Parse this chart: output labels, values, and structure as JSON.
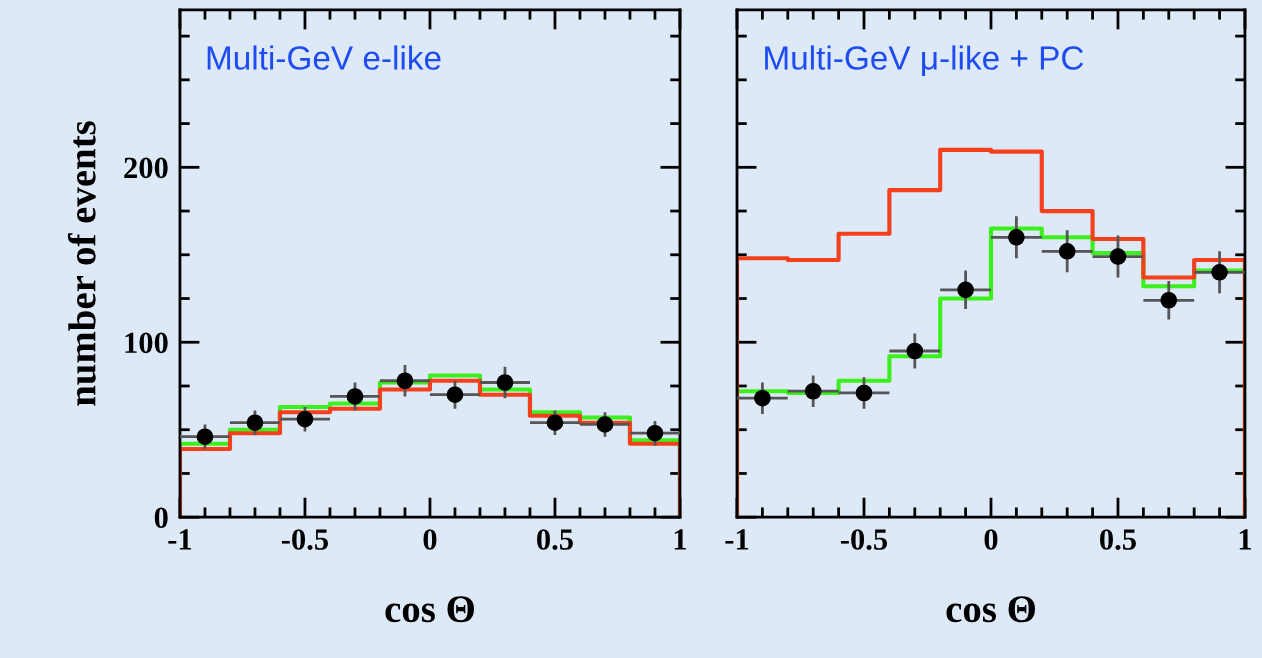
{
  "chart_data": [
    {
      "type": "histogram",
      "title": "Multi-GeV e-like",
      "xlabel": "cos Θ",
      "ylabel": "number of events",
      "bins": [
        -1,
        -0.8,
        -0.6,
        -0.4,
        -0.2,
        0,
        0.2,
        0.4,
        0.6,
        0.8,
        1
      ],
      "series": [
        {
          "color": "#3cf01e",
          "values": [
            42,
            50,
            63,
            65,
            77,
            81,
            73,
            60,
            57,
            44
          ]
        },
        {
          "color": "#f5401e",
          "values": [
            39,
            48,
            60,
            62,
            73,
            78,
            70,
            58,
            54,
            42
          ]
        },
        {
          "type": "scatter",
          "color": "#000000",
          "x": [
            -0.9,
            -0.7,
            -0.5,
            -0.3,
            -0.1,
            0.1,
            0.3,
            0.5,
            0.7,
            0.9
          ],
          "values": [
            46,
            54,
            56,
            69,
            78,
            70,
            77,
            54,
            53,
            48
          ],
          "errors": [
            7,
            7,
            7,
            8,
            9,
            8,
            9,
            7,
            7,
            7
          ],
          "xerrors": [
            0.1,
            0.1,
            0.1,
            0.1,
            0.1,
            0.1,
            0.1,
            0.1,
            0.1,
            0.1
          ]
        }
      ],
      "marker": "circle",
      "grid": false,
      "xlim": [
        -1,
        1
      ],
      "ylim": [
        0,
        290
      ],
      "xticks": [
        -1,
        {
          "value": -0.9,
          "label": null
        },
        {
          "value": -0.8,
          "label": null
        },
        {
          "value": -0.7,
          "label": null
        },
        {
          "value": -0.6,
          "label": null
        },
        -0.5,
        {
          "value": -0.4,
          "label": null
        },
        {
          "value": -0.3,
          "label": null
        },
        {
          "value": -0.2,
          "label": null
        },
        {
          "value": -0.1,
          "label": null
        },
        0,
        {
          "value": 0.1,
          "label": null
        },
        {
          "value": 0.2,
          "label": null
        },
        {
          "value": 0.3,
          "label": null
        },
        {
          "value": 0.4,
          "label": null
        },
        0.5,
        {
          "value": 0.6,
          "label": null
        },
        {
          "value": 0.7,
          "label": null
        },
        {
          "value": 0.8,
          "label": null
        },
        {
          "value": 0.9,
          "label": null
        },
        1
      ],
      "yticks": [
        0,
        {
          "value": 25,
          "label": null
        },
        {
          "value": 50,
          "label": null
        },
        {
          "value": 75,
          "label": null
        },
        100,
        {
          "value": 125,
          "label": null
        },
        {
          "value": 150,
          "label": null
        },
        {
          "value": 175,
          "label": null
        },
        200,
        {
          "value": 225,
          "label": null
        },
        {
          "value": 250,
          "label": null
        },
        {
          "value": 275,
          "label": null
        }
      ]
    },
    {
      "type": "histogram",
      "title": "Multi-GeV μ-like + PC",
      "xlabel": "cos Θ",
      "bins": [
        -1,
        -0.8,
        -0.6,
        -0.4,
        -0.2,
        0,
        0.2,
        0.4,
        0.6,
        0.8,
        1
      ],
      "series": [
        {
          "color": "#3cf01e",
          "values": [
            72,
            71,
            78,
            92,
            125,
            165,
            160,
            151,
            132,
            141
          ]
        },
        {
          "color": "#f5401e",
          "values": [
            148,
            147,
            162,
            187,
            210,
            209,
            175,
            159,
            137,
            147
          ]
        },
        {
          "type": "scatter",
          "color": "#000000",
          "x": [
            -0.9,
            -0.7,
            -0.5,
            -0.3,
            -0.1,
            0.1,
            0.3,
            0.5,
            0.7,
            0.9
          ],
          "values": [
            68,
            72,
            71,
            95,
            130,
            160,
            152,
            149,
            124,
            140
          ],
          "errors": [
            9,
            9,
            9,
            10,
            11,
            12,
            12,
            12,
            11,
            12
          ],
          "xerrors": [
            0.1,
            0.1,
            0.1,
            0.1,
            0.1,
            0.1,
            0.1,
            0.1,
            0.1,
            0.1
          ]
        }
      ],
      "marker": "circle",
      "grid": false,
      "tick_labels": "x",
      "xlim": [
        -1,
        1
      ],
      "ylim": [
        0,
        290
      ],
      "xticks": [
        -1,
        {
          "value": -0.9,
          "label": null
        },
        {
          "value": -0.8,
          "label": null
        },
        {
          "value": -0.7,
          "label": null
        },
        {
          "value": -0.6,
          "label": null
        },
        -0.5,
        {
          "value": -0.4,
          "label": null
        },
        {
          "value": -0.3,
          "label": null
        },
        {
          "value": -0.2,
          "label": null
        },
        {
          "value": -0.1,
          "label": null
        },
        0,
        {
          "value": 0.1,
          "label": null
        },
        {
          "value": 0.2,
          "label": null
        },
        {
          "value": 0.3,
          "label": null
        },
        {
          "value": 0.4,
          "label": null
        },
        0.5,
        {
          "value": 0.6,
          "label": null
        },
        {
          "value": 0.7,
          "label": null
        },
        {
          "value": 0.8,
          "label": null
        },
        {
          "value": 0.9,
          "label": null
        },
        1
      ],
      "yticks": [
        0,
        {
          "value": 25,
          "label": null
        },
        {
          "value": 50,
          "label": null
        },
        {
          "value": 75,
          "label": null
        },
        100,
        {
          "value": 125,
          "label": null
        },
        {
          "value": 150,
          "label": null
        },
        {
          "value": 175,
          "label": null
        },
        200,
        {
          "value": 225,
          "label": null
        },
        {
          "value": 250,
          "label": null
        },
        {
          "value": 275,
          "label": null
        }
      ]
    }
  ]
}
